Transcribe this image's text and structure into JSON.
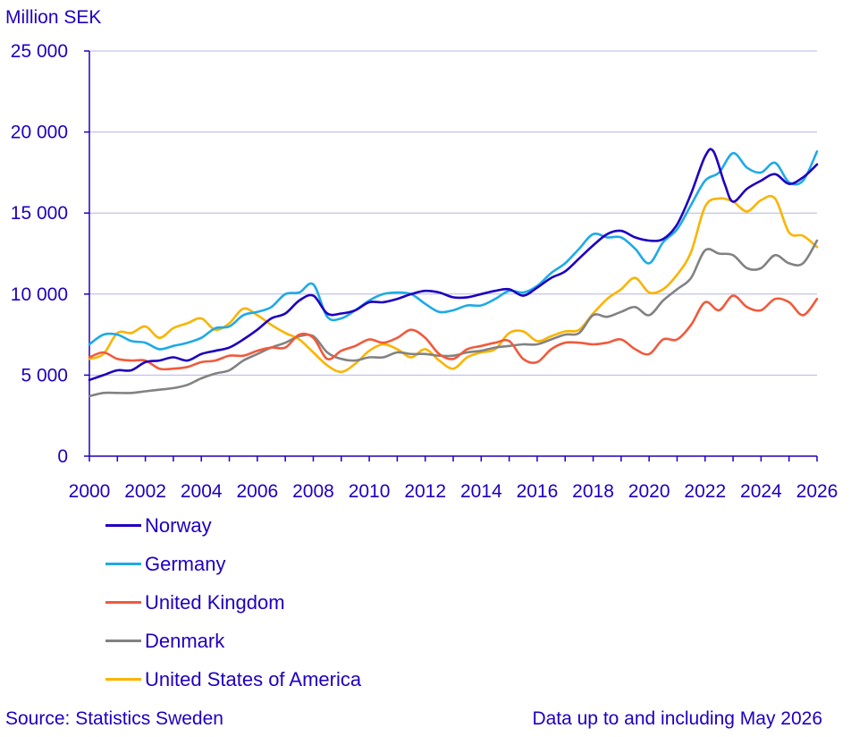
{
  "chart_data": {
    "type": "line",
    "title": "",
    "ylabel": "Million SEK",
    "xlabel": "",
    "ylim": [
      0,
      25000
    ],
    "xlim": [
      2000,
      2026
    ],
    "grid": true,
    "legend_position": "bottom-left",
    "yticks": [
      {
        "value": 0,
        "label": "0"
      },
      {
        "value": 5000,
        "label": "5 000"
      },
      {
        "value": 10000,
        "label": "10 000"
      },
      {
        "value": 15000,
        "label": "15 000"
      },
      {
        "value": 20000,
        "label": "20 000"
      },
      {
        "value": 25000,
        "label": "25 000"
      }
    ],
    "xticks": [
      {
        "value": 2000,
        "label": "2000"
      },
      {
        "value": 2002,
        "label": "2002"
      },
      {
        "value": 2004,
        "label": "2004"
      },
      {
        "value": 2006,
        "label": "2006"
      },
      {
        "value": 2008,
        "label": "2008"
      },
      {
        "value": 2010,
        "label": "2010"
      },
      {
        "value": 2012,
        "label": "2012"
      },
      {
        "value": 2014,
        "label": "2014"
      },
      {
        "value": 2016,
        "label": "2016"
      },
      {
        "value": 2018,
        "label": "2018"
      },
      {
        "value": 2020,
        "label": "2020"
      },
      {
        "value": 2022,
        "label": "2022"
      },
      {
        "value": 2024,
        "label": "2024"
      },
      {
        "value": 2026,
        "label": "2026"
      }
    ],
    "series": [
      {
        "name": "Norway",
        "color": "#1e00be",
        "points": [
          [
            2000.0,
            4700
          ],
          [
            2000.5,
            5000
          ],
          [
            2001.0,
            5300
          ],
          [
            2001.5,
            5300
          ],
          [
            2002.0,
            5800
          ],
          [
            2002.5,
            5900
          ],
          [
            2003.0,
            6100
          ],
          [
            2003.5,
            5900
          ],
          [
            2004.0,
            6300
          ],
          [
            2004.5,
            6500
          ],
          [
            2005.0,
            6700
          ],
          [
            2005.5,
            7200
          ],
          [
            2006.0,
            7800
          ],
          [
            2006.5,
            8500
          ],
          [
            2007.0,
            8800
          ],
          [
            2007.5,
            9600
          ],
          [
            2008.0,
            9900
          ],
          [
            2008.5,
            8800
          ],
          [
            2009.0,
            8800
          ],
          [
            2009.5,
            9000
          ],
          [
            2010.0,
            9500
          ],
          [
            2010.5,
            9500
          ],
          [
            2011.0,
            9700
          ],
          [
            2011.5,
            10000
          ],
          [
            2012.0,
            10200
          ],
          [
            2012.5,
            10100
          ],
          [
            2013.0,
            9800
          ],
          [
            2013.5,
            9800
          ],
          [
            2014.0,
            10000
          ],
          [
            2014.5,
            10200
          ],
          [
            2015.0,
            10300
          ],
          [
            2015.5,
            9900
          ],
          [
            2016.0,
            10400
          ],
          [
            2016.5,
            11000
          ],
          [
            2017.0,
            11400
          ],
          [
            2017.5,
            12200
          ],
          [
            2018.0,
            13000
          ],
          [
            2018.5,
            13700
          ],
          [
            2019.0,
            13900
          ],
          [
            2019.5,
            13500
          ],
          [
            2020.0,
            13300
          ],
          [
            2020.5,
            13400
          ],
          [
            2021.0,
            14300
          ],
          [
            2021.5,
            16200
          ],
          [
            2022.0,
            18500
          ],
          [
            2022.3,
            18800
          ],
          [
            2022.7,
            16800
          ],
          [
            2023.0,
            15700
          ],
          [
            2023.5,
            16500
          ],
          [
            2024.0,
            17000
          ],
          [
            2024.5,
            17400
          ],
          [
            2025.0,
            16800
          ],
          [
            2025.5,
            17200
          ],
          [
            2026.0,
            18000
          ]
        ]
      },
      {
        "name": "Germany",
        "color": "#1eaae6",
        "points": [
          [
            2000.0,
            6900
          ],
          [
            2000.5,
            7500
          ],
          [
            2001.0,
            7500
          ],
          [
            2001.5,
            7100
          ],
          [
            2002.0,
            7000
          ],
          [
            2002.5,
            6600
          ],
          [
            2003.0,
            6800
          ],
          [
            2003.5,
            7000
          ],
          [
            2004.0,
            7300
          ],
          [
            2004.5,
            7900
          ],
          [
            2005.0,
            8000
          ],
          [
            2005.5,
            8700
          ],
          [
            2006.0,
            8900
          ],
          [
            2006.5,
            9200
          ],
          [
            2007.0,
            10000
          ],
          [
            2007.5,
            10100
          ],
          [
            2008.0,
            10600
          ],
          [
            2008.5,
            8600
          ],
          [
            2009.0,
            8500
          ],
          [
            2009.5,
            9000
          ],
          [
            2010.0,
            9600
          ],
          [
            2010.5,
            10000
          ],
          [
            2011.0,
            10100
          ],
          [
            2011.5,
            10000
          ],
          [
            2012.0,
            9400
          ],
          [
            2012.5,
            8900
          ],
          [
            2013.0,
            9000
          ],
          [
            2013.5,
            9300
          ],
          [
            2014.0,
            9300
          ],
          [
            2014.5,
            9700
          ],
          [
            2015.0,
            10200
          ],
          [
            2015.5,
            10100
          ],
          [
            2016.0,
            10500
          ],
          [
            2016.5,
            11300
          ],
          [
            2017.0,
            11900
          ],
          [
            2017.5,
            12800
          ],
          [
            2018.0,
            13700
          ],
          [
            2018.5,
            13500
          ],
          [
            2019.0,
            13500
          ],
          [
            2019.5,
            12800
          ],
          [
            2020.0,
            11900
          ],
          [
            2020.5,
            13200
          ],
          [
            2021.0,
            14000
          ],
          [
            2021.5,
            15500
          ],
          [
            2022.0,
            17000
          ],
          [
            2022.5,
            17500
          ],
          [
            2023.0,
            18700
          ],
          [
            2023.5,
            17800
          ],
          [
            2024.0,
            17500
          ],
          [
            2024.5,
            18100
          ],
          [
            2025.0,
            16900
          ],
          [
            2025.5,
            17000
          ],
          [
            2026.0,
            18800
          ]
        ]
      },
      {
        "name": "United Kingdom",
        "color": "#f05a3c",
        "points": [
          [
            2000.0,
            6100
          ],
          [
            2000.5,
            6400
          ],
          [
            2001.0,
            6000
          ],
          [
            2001.5,
            5900
          ],
          [
            2002.0,
            5900
          ],
          [
            2002.5,
            5400
          ],
          [
            2003.0,
            5400
          ],
          [
            2003.5,
            5500
          ],
          [
            2004.0,
            5800
          ],
          [
            2004.5,
            5900
          ],
          [
            2005.0,
            6200
          ],
          [
            2005.5,
            6200
          ],
          [
            2006.0,
            6500
          ],
          [
            2006.5,
            6700
          ],
          [
            2007.0,
            6700
          ],
          [
            2007.5,
            7500
          ],
          [
            2008.0,
            7300
          ],
          [
            2008.5,
            6000
          ],
          [
            2009.0,
            6500
          ],
          [
            2009.5,
            6800
          ],
          [
            2010.0,
            7200
          ],
          [
            2010.5,
            7000
          ],
          [
            2011.0,
            7300
          ],
          [
            2011.5,
            7800
          ],
          [
            2012.0,
            7300
          ],
          [
            2012.5,
            6300
          ],
          [
            2013.0,
            6000
          ],
          [
            2013.5,
            6600
          ],
          [
            2014.0,
            6800
          ],
          [
            2014.5,
            7000
          ],
          [
            2015.0,
            7100
          ],
          [
            2015.5,
            6000
          ],
          [
            2016.0,
            5800
          ],
          [
            2016.5,
            6600
          ],
          [
            2017.0,
            7000
          ],
          [
            2017.5,
            7000
          ],
          [
            2018.0,
            6900
          ],
          [
            2018.5,
            7000
          ],
          [
            2019.0,
            7200
          ],
          [
            2019.5,
            6600
          ],
          [
            2020.0,
            6300
          ],
          [
            2020.5,
            7200
          ],
          [
            2021.0,
            7200
          ],
          [
            2021.5,
            8100
          ],
          [
            2022.0,
            9500
          ],
          [
            2022.5,
            9000
          ],
          [
            2023.0,
            9900
          ],
          [
            2023.5,
            9200
          ],
          [
            2024.0,
            9000
          ],
          [
            2024.5,
            9700
          ],
          [
            2025.0,
            9500
          ],
          [
            2025.5,
            8700
          ],
          [
            2026.0,
            9700
          ]
        ]
      },
      {
        "name": "Denmark",
        "color": "#828282",
        "points": [
          [
            2000.0,
            3700
          ],
          [
            2000.5,
            3900
          ],
          [
            2001.0,
            3900
          ],
          [
            2001.5,
            3900
          ],
          [
            2002.0,
            4000
          ],
          [
            2002.5,
            4100
          ],
          [
            2003.0,
            4200
          ],
          [
            2003.5,
            4400
          ],
          [
            2004.0,
            4800
          ],
          [
            2004.5,
            5100
          ],
          [
            2005.0,
            5300
          ],
          [
            2005.5,
            5900
          ],
          [
            2006.0,
            6300
          ],
          [
            2006.5,
            6700
          ],
          [
            2007.0,
            7000
          ],
          [
            2007.5,
            7400
          ],
          [
            2008.0,
            7400
          ],
          [
            2008.5,
            6400
          ],
          [
            2009.0,
            6000
          ],
          [
            2009.5,
            5900
          ],
          [
            2010.0,
            6100
          ],
          [
            2010.5,
            6100
          ],
          [
            2011.0,
            6400
          ],
          [
            2011.5,
            6300
          ],
          [
            2012.0,
            6300
          ],
          [
            2012.5,
            6200
          ],
          [
            2013.0,
            6200
          ],
          [
            2013.5,
            6400
          ],
          [
            2014.0,
            6500
          ],
          [
            2014.5,
            6700
          ],
          [
            2015.0,
            6800
          ],
          [
            2015.5,
            6900
          ],
          [
            2016.0,
            6900
          ],
          [
            2016.5,
            7200
          ],
          [
            2017.0,
            7500
          ],
          [
            2017.5,
            7600
          ],
          [
            2018.0,
            8700
          ],
          [
            2018.5,
            8600
          ],
          [
            2019.0,
            8900
          ],
          [
            2019.5,
            9200
          ],
          [
            2020.0,
            8700
          ],
          [
            2020.5,
            9600
          ],
          [
            2021.0,
            10300
          ],
          [
            2021.5,
            11000
          ],
          [
            2022.0,
            12700
          ],
          [
            2022.5,
            12500
          ],
          [
            2023.0,
            12400
          ],
          [
            2023.5,
            11600
          ],
          [
            2024.0,
            11600
          ],
          [
            2024.5,
            12400
          ],
          [
            2025.0,
            11900
          ],
          [
            2025.5,
            11900
          ],
          [
            2026.0,
            13300
          ]
        ]
      },
      {
        "name": "United States of America",
        "color": "#fab400",
        "points": [
          [
            2000.0,
            6000
          ],
          [
            2000.5,
            6300
          ],
          [
            2001.0,
            7600
          ],
          [
            2001.5,
            7600
          ],
          [
            2002.0,
            8000
          ],
          [
            2002.5,
            7300
          ],
          [
            2003.0,
            7900
          ],
          [
            2003.5,
            8200
          ],
          [
            2004.0,
            8500
          ],
          [
            2004.5,
            7800
          ],
          [
            2005.0,
            8200
          ],
          [
            2005.5,
            9100
          ],
          [
            2006.0,
            8700
          ],
          [
            2006.5,
            8100
          ],
          [
            2007.0,
            7600
          ],
          [
            2007.5,
            7200
          ],
          [
            2008.0,
            6400
          ],
          [
            2008.5,
            5600
          ],
          [
            2009.0,
            5200
          ],
          [
            2009.5,
            5700
          ],
          [
            2010.0,
            6500
          ],
          [
            2010.5,
            6900
          ],
          [
            2011.0,
            6600
          ],
          [
            2011.5,
            6100
          ],
          [
            2012.0,
            6600
          ],
          [
            2012.5,
            5900
          ],
          [
            2013.0,
            5400
          ],
          [
            2013.5,
            6100
          ],
          [
            2014.0,
            6400
          ],
          [
            2014.5,
            6600
          ],
          [
            2015.0,
            7600
          ],
          [
            2015.5,
            7700
          ],
          [
            2016.0,
            7100
          ],
          [
            2016.5,
            7400
          ],
          [
            2017.0,
            7700
          ],
          [
            2017.5,
            7800
          ],
          [
            2018.0,
            8800
          ],
          [
            2018.5,
            9700
          ],
          [
            2019.0,
            10300
          ],
          [
            2019.5,
            11000
          ],
          [
            2020.0,
            10100
          ],
          [
            2020.5,
            10300
          ],
          [
            2021.0,
            11200
          ],
          [
            2021.5,
            12600
          ],
          [
            2022.0,
            15400
          ],
          [
            2022.5,
            15900
          ],
          [
            2023.0,
            15700
          ],
          [
            2023.5,
            15100
          ],
          [
            2024.0,
            15800
          ],
          [
            2024.5,
            15900
          ],
          [
            2025.0,
            13800
          ],
          [
            2025.5,
            13600
          ],
          [
            2026.0,
            12900
          ]
        ]
      }
    ]
  },
  "footer": {
    "source": "Source: Statistics Sweden",
    "note": "Data up to and including May 2026"
  }
}
